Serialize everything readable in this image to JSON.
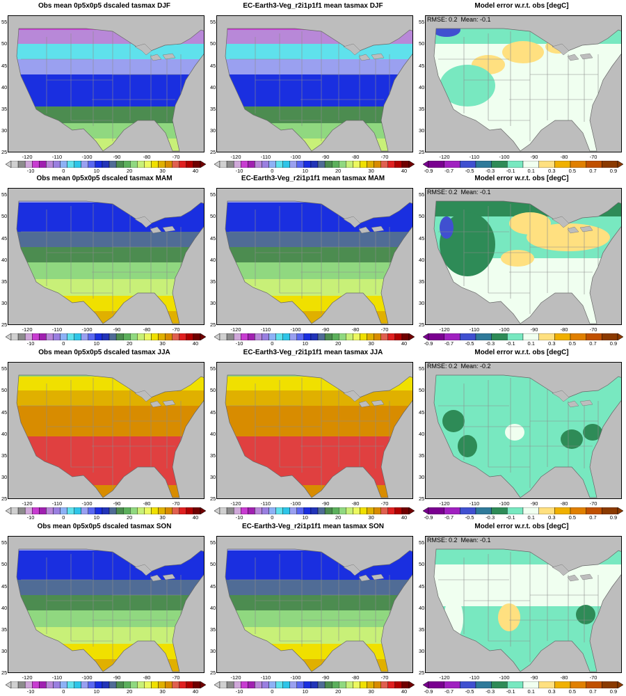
{
  "rows": [
    {
      "season": "DJF",
      "titles": [
        "Obs mean 0p5x0p5 dscaled tasmax DJF",
        "EC-Earth3-Veg_r2i1p1f1 mean tasmax DJF",
        "Model error w.r.t. obs [degC]"
      ],
      "error_text": "RMSE: 0.2  Mean: -0.1"
    },
    {
      "season": "MAM",
      "titles": [
        "Obs mean 0p5x0p5 dscaled tasmax MAM",
        "EC-Earth3-Veg_r2i1p1f1 mean tasmax MAM",
        "Model error w.r.t. obs [degC]"
      ],
      "error_text": "RMSE: 0.2  Mean: -0.1"
    },
    {
      "season": "JJA",
      "titles": [
        "Obs mean 0p5x0p5 dscaled tasmax JJA",
        "EC-Earth3-Veg_r2i1p1f1 mean tasmax JJA",
        "Model error w.r.t. obs [degC]"
      ],
      "error_text": "RMSE: 0.2  Mean: -0.2"
    },
    {
      "season": "SON",
      "titles": [
        "Obs mean 0p5x0p5 dscaled tasmax SON",
        "EC-Earth3-Veg_r2i1p1f1 mean tasmax SON",
        "Model error w.r.t. obs [degC]"
      ],
      "error_text": "RMSE: 0.2  Mean: -0.1"
    }
  ],
  "lat_ticks": [
    "55",
    "50",
    "45",
    "40",
    "35",
    "30",
    "25"
  ],
  "lon_ticks": [
    "-120",
    "-110",
    "-100",
    "-90",
    "-80",
    "-70"
  ],
  "temp_colorbar": {
    "labels": [
      "-10",
      "0",
      "10",
      "20",
      "30",
      "40"
    ],
    "colors": [
      "#d0d0d0",
      "#8c8c8c",
      "#cfa8d9",
      "#c83cd1",
      "#a020b0",
      "#b888d8",
      "#9a7fe0",
      "#8db1f5",
      "#5fe1ec",
      "#2ec5e8",
      "#9aa0f0",
      "#5a68f0",
      "#1a2fe0",
      "#2234b8",
      "#506c96",
      "#4c8c50",
      "#5cb05c",
      "#90d880",
      "#c8f078",
      "#ecf860",
      "#f0e000",
      "#e0b000",
      "#d88c00",
      "#e06050",
      "#e02020",
      "#b00000",
      "#700000"
    ]
  },
  "error_colorbar": {
    "labels": [
      "-0.9",
      "-0.7",
      "-0.5",
      "-0.3",
      "-0.1",
      "0.1",
      "0.3",
      "0.5",
      "0.7",
      "0.9"
    ],
    "colors": [
      "#7a0090",
      "#a020c0",
      "#4050d0",
      "#2f7a9a",
      "#2e8b57",
      "#78e8c0",
      "#f0fff0",
      "#ffe080",
      "#f0b000",
      "#e08000",
      "#c05000",
      "#8b3a00"
    ]
  },
  "map_palette": {
    "gray": "#bdbdbd",
    "white": "#ffffff",
    "magenta": "#c83cd1",
    "lilac": "#b888d8",
    "cyan": "#5fe1ec",
    "periwinkle": "#9aa0f0",
    "blue": "#1a2fe0",
    "slate": "#506c96",
    "green": "#4c8c50",
    "lightgreen": "#90d880",
    "yellowgreen": "#c8f078",
    "yellow": "#f0e000",
    "gold": "#e0b000",
    "orange": "#d88c00",
    "red": "#e04040",
    "darkred": "#700000",
    "mint": "#78e8c0",
    "darkgreen": "#2e8b57",
    "bluepatch": "#4050d0",
    "pale": "#f0fff0",
    "lightyellow": "#ffe080",
    "amber": "#f0b000"
  }
}
